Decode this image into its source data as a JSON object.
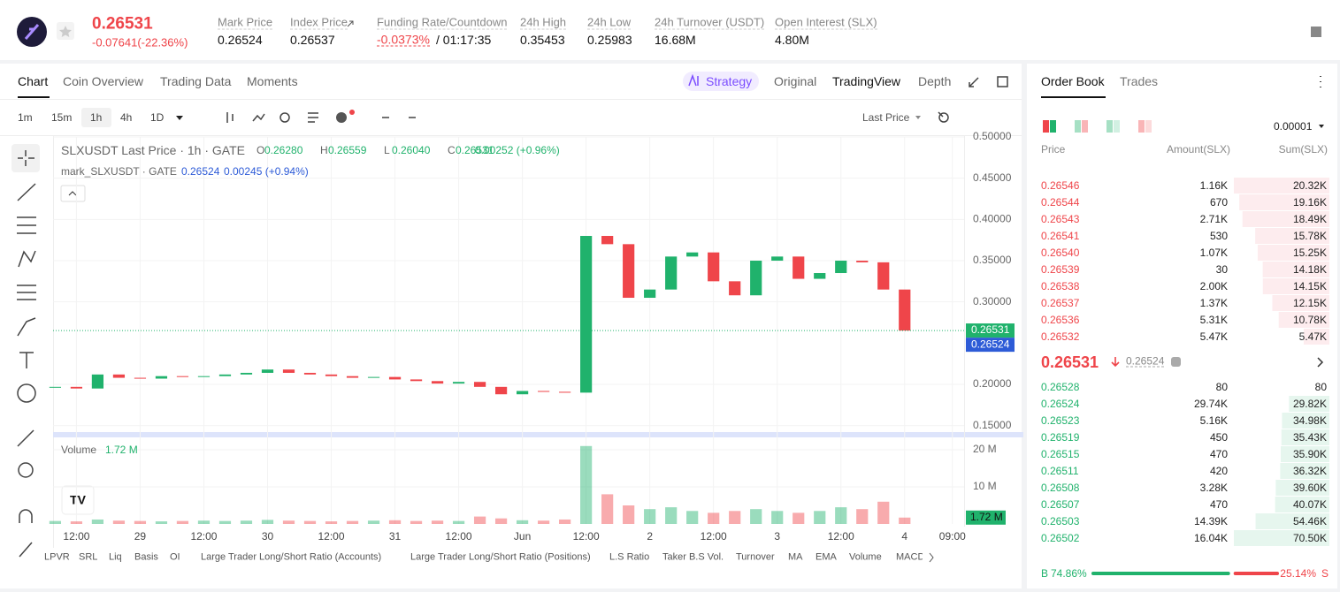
{
  "header": {
    "price": "0.26531",
    "change": "-0.07641(-22.36%)",
    "stats": [
      {
        "label": "Mark Price",
        "value": "0.26524"
      },
      {
        "label": "Index Price",
        "value": "0.26537"
      },
      {
        "label": "Funding Rate/Countdown",
        "value": "-0.0373%",
        "extra": "/ 01:17:35"
      },
      {
        "label": "24h High",
        "value": "0.35453"
      },
      {
        "label": "24h Low",
        "value": "0.25983"
      },
      {
        "label": "24h Turnover (USDT)",
        "value": "16.68M"
      },
      {
        "label": "Open Interest (SLX)",
        "value": "4.80M"
      }
    ]
  },
  "chart_tabs": [
    "Chart",
    "Coin Overview",
    "Trading Data",
    "Moments"
  ],
  "view_tabs": [
    "Strategy",
    "Original",
    "TradingView",
    "Depth"
  ],
  "intervals": [
    "1m",
    "15m",
    "1h",
    "4h",
    "1D"
  ],
  "price_source": "Last Price",
  "legend": {
    "title": "SLXUSDT Last Price · 1h · GATE",
    "ohlc": [
      {
        "k": "O",
        "v": "0.26280"
      },
      {
        "k": "H",
        "v": "0.26559"
      },
      {
        "k": "L",
        "v": "0.26040"
      },
      {
        "k": "C",
        "v": "0.26531"
      }
    ],
    "change": "0.00252 (+0.96%)",
    "mark_title": "mark_SLXUSDT · GATE",
    "mark_value": "0.26524",
    "mark_change": "0.00245 (+0.94%)"
  },
  "volume_legend": {
    "label": "Volume",
    "value": "1.72 M"
  },
  "chart_data": {
    "type": "candlestick",
    "closes": [
      0.197,
      0.195,
      0.212,
      0.208,
      0.207,
      0.21,
      0.209,
      0.21,
      0.212,
      0.214,
      0.218,
      0.214,
      0.212,
      0.21,
      0.208,
      0.209,
      0.206,
      0.204,
      0.201,
      0.203,
      0.197,
      0.188,
      0.192,
      0.191,
      0.19,
      0.38,
      0.37,
      0.305,
      0.315,
      0.355,
      0.36,
      0.325,
      0.308,
      0.35,
      0.355,
      0.328,
      0.335,
      0.35,
      0.348,
      0.315,
      0.2653
    ],
    "volumes": [
      0.8,
      0.7,
      1.2,
      0.9,
      0.8,
      0.7,
      0.8,
      0.9,
      0.8,
      0.9,
      1.1,
      0.9,
      0.8,
      0.7,
      0.8,
      0.9,
      1.0,
      0.8,
      0.9,
      0.8,
      2.0,
      1.5,
      1.0,
      0.9,
      1.2,
      21.0,
      8.0,
      5.0,
      4.0,
      4.5,
      3.5,
      3.0,
      3.5,
      4.0,
      3.5,
      3.0,
      3.5,
      4.5,
      4.0,
      6.0,
      1.72
    ],
    "ylim": [
      0.15,
      0.5
    ],
    "yticks": [
      {
        "value": 0.15,
        "label": "0.15000"
      },
      {
        "value": 0.2,
        "label": "0.20000"
      },
      {
        "value": 0.3,
        "label": "0.30000"
      },
      {
        "value": 0.35,
        "label": "0.35000"
      },
      {
        "value": 0.4,
        "label": "0.40000"
      },
      {
        "value": 0.45,
        "label": "0.45000"
      },
      {
        "value": 0.5,
        "label": "0.50000"
      }
    ],
    "vlim": [
      0,
      22
    ],
    "vticks": [
      {
        "value": 10,
        "label": "10 M"
      },
      {
        "value": 20,
        "label": "20 M"
      }
    ],
    "xlim": [
      -0.1,
      42.8
    ],
    "xticks": [
      {
        "value": 1,
        "label": "12:00"
      },
      {
        "value": 4,
        "label": "29"
      },
      {
        "value": 7,
        "label": "12:00"
      },
      {
        "value": 10,
        "label": "30"
      },
      {
        "value": 13,
        "label": "12:00"
      },
      {
        "value": 16,
        "label": "31"
      },
      {
        "value": 19,
        "label": "12:00"
      },
      {
        "value": 22,
        "label": "Jun"
      },
      {
        "value": 25,
        "label": "12:00"
      },
      {
        "value": 28,
        "label": "2"
      },
      {
        "value": 31,
        "label": "12:00"
      },
      {
        "value": 34,
        "label": "3"
      },
      {
        "value": 37,
        "label": "12:00"
      },
      {
        "value": 40,
        "label": "4"
      },
      {
        "value": 42.25,
        "label": "09:00"
      }
    ],
    "last_price": {
      "value": 0.26531,
      "label": "0.26531"
    },
    "mark_price": {
      "value": 0.26524,
      "label": "0.26524"
    },
    "volume_tag": {
      "value": 1.72,
      "label": "1.72 M"
    },
    "up_color": "#20b26c",
    "down_color": "#ef454a"
  },
  "indicators": [
    "LPVR",
    "SRL",
    "Liq",
    "Basis",
    "OI",
    "Large Trader Long/Short Ratio (Accounts)",
    "Large Trader Long/Short Ratio (Positions)",
    "L.S Ratio",
    "Taker B.S Vol.",
    "Turnover",
    "MA",
    "EMA",
    "Volume",
    "MACD"
  ],
  "order_book": {
    "tabs": [
      "Order Book",
      "Trades"
    ],
    "precision": "0.00001",
    "columns": [
      "Price",
      "Amount(SLX)",
      "Sum(SLX)"
    ],
    "asks": [
      {
        "price": "0.26546",
        "amount": "1.16K",
        "sum": {
          "value": 20320,
          "label": "20.32K"
        }
      },
      {
        "price": "0.26544",
        "amount": "670",
        "sum": {
          "value": 19160,
          "label": "19.16K"
        }
      },
      {
        "price": "0.26543",
        "amount": "2.71K",
        "sum": {
          "value": 18490,
          "label": "18.49K"
        }
      },
      {
        "price": "0.26541",
        "amount": "530",
        "sum": {
          "value": 15780,
          "label": "15.78K"
        }
      },
      {
        "price": "0.26540",
        "amount": "1.07K",
        "sum": {
          "value": 15250,
          "label": "15.25K"
        }
      },
      {
        "price": "0.26539",
        "amount": "30",
        "sum": {
          "value": 14180,
          "label": "14.18K"
        }
      },
      {
        "price": "0.26538",
        "amount": "2.00K",
        "sum": {
          "value": 14150,
          "label": "14.15K"
        }
      },
      {
        "price": "0.26537",
        "amount": "1.37K",
        "sum": {
          "value": 12150,
          "label": "12.15K"
        }
      },
      {
        "price": "0.26536",
        "amount": "5.31K",
        "sum": {
          "value": 10780,
          "label": "10.78K"
        }
      },
      {
        "price": "0.26532",
        "amount": "5.47K",
        "sum": {
          "value": 5470,
          "label": "5.47K"
        }
      }
    ],
    "mid": {
      "price": "0.26531",
      "mark": "0.26524"
    },
    "bids": [
      {
        "price": "0.26528",
        "amount": "80",
        "sum": 80
      },
      {
        "price": "0.26524",
        "amount": "29.74K",
        "sum": {
          "value": 29820,
          "label": "29.82K"
        }
      },
      {
        "price": "0.26523",
        "amount": "5.16K",
        "sum": {
          "value": 34980,
          "label": "34.98K"
        }
      },
      {
        "price": "0.26519",
        "amount": "450",
        "sum": {
          "value": 35430,
          "label": "35.43K"
        }
      },
      {
        "price": "0.26515",
        "amount": "470",
        "sum": {
          "value": 35900,
          "label": "35.90K"
        }
      },
      {
        "price": "0.26511",
        "amount": "420",
        "sum": {
          "value": 36320,
          "label": "36.32K"
        }
      },
      {
        "price": "0.26508",
        "amount": "3.28K",
        "sum": {
          "value": 39600,
          "label": "39.60K"
        }
      },
      {
        "price": "0.26507",
        "amount": "470",
        "sum": {
          "value": 40070,
          "label": "40.07K"
        }
      },
      {
        "price": "0.26503",
        "amount": "14.39K",
        "sum": {
          "value": 54460,
          "label": "54.46K"
        }
      },
      {
        "price": "0.26502",
        "amount": "16.04K",
        "sum": {
          "value": 70500,
          "label": "70.50K"
        }
      }
    ],
    "ratio": {
      "buy_label": "B",
      "buy": {
        "value": 74.86,
        "label": "74.86%"
      },
      "sell": {
        "value": 25.14,
        "label": "25.14%"
      },
      "sell_label": "S"
    }
  }
}
